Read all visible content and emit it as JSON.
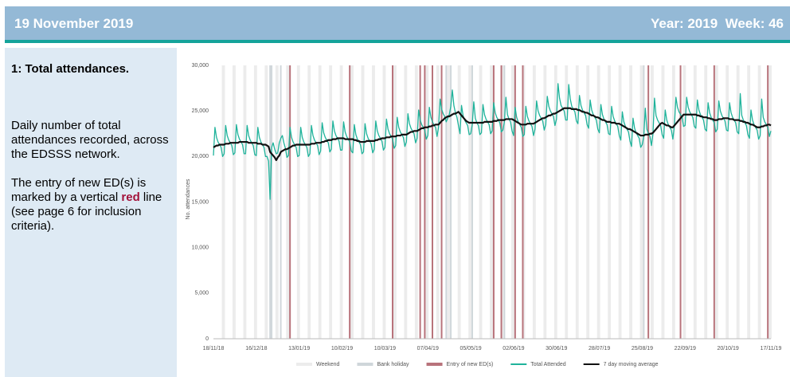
{
  "header": {
    "date": "19 November 2019",
    "year_week": "Year: 2019  Week: 46"
  },
  "sidebar": {
    "heading": "1: Total attendances.",
    "description": "Daily number of total attendances recorded, across the EDSSS network.",
    "note_before": "The entry of new ED(s) is marked by a vertical ",
    "note_highlight": "red",
    "note_after": " line (see page 6 for inclusion criteria)."
  },
  "chart_data": {
    "type": "line",
    "ylabel": "No. attendances",
    "ylim": [
      0,
      30000
    ],
    "yticks": [
      0,
      {
        "value": 5000,
        "label": "5,000"
      },
      {
        "value": 10000,
        "label": "10,000"
      },
      {
        "value": 15000,
        "label": "15,000"
      },
      {
        "value": 20000,
        "label": "20,000"
      },
      {
        "value": 25000,
        "label": "25,000"
      },
      {
        "value": 30000,
        "label": "30,000"
      }
    ],
    "categories": [
      "18/11/18",
      null,
      null,
      null,
      null,
      null,
      null,
      null,
      null,
      null,
      null,
      null,
      null,
      null,
      null,
      null,
      null,
      null,
      null,
      null,
      null,
      null,
      null,
      null,
      null,
      null,
      null,
      null,
      "16/12/18",
      null,
      null,
      null,
      null,
      null,
      null,
      null,
      null,
      null,
      null,
      null,
      null,
      null,
      null,
      null,
      null,
      null,
      null,
      null,
      null,
      null,
      null,
      null,
      null,
      null,
      null,
      null,
      "13/01/19",
      null,
      null,
      null,
      null,
      null,
      null,
      null,
      null,
      null,
      null,
      null,
      null,
      null,
      null,
      null,
      null,
      null,
      null,
      null,
      null,
      null,
      null,
      null,
      null,
      null,
      null,
      null,
      "10/02/19",
      null,
      null,
      null,
      null,
      null,
      null,
      null,
      null,
      null,
      null,
      null,
      null,
      null,
      null,
      null,
      null,
      null,
      null,
      null,
      null,
      null,
      null,
      null,
      null,
      null,
      null,
      null,
      "10/03/19",
      null,
      null,
      null,
      null,
      null,
      null,
      null,
      null,
      null,
      null,
      null,
      null,
      null,
      null,
      null,
      null,
      null,
      null,
      null,
      null,
      null,
      null,
      null,
      null,
      null,
      null,
      null,
      "07/04/19",
      null,
      null,
      null,
      null,
      null,
      null,
      null,
      null,
      null,
      null,
      null,
      null,
      null,
      null,
      null,
      null,
      null,
      null,
      null,
      null,
      null,
      null,
      null,
      null,
      null,
      null,
      null,
      "05/05/19",
      null,
      null,
      null,
      null,
      null,
      null,
      null,
      null,
      null,
      null,
      null,
      null,
      null,
      null,
      null,
      null,
      null,
      null,
      null,
      null,
      null,
      null,
      null,
      null,
      null,
      null,
      null,
      "02/06/19",
      null,
      null,
      null,
      null,
      null,
      null,
      null,
      null,
      null,
      null,
      null,
      null,
      null,
      null,
      null,
      null,
      null,
      null,
      null,
      null,
      null,
      null,
      null,
      null,
      null,
      null,
      null,
      "30/06/19",
      null,
      null,
      null,
      null,
      null,
      null,
      null,
      null,
      null,
      null,
      null,
      null,
      null,
      null,
      null,
      null,
      null,
      null,
      null,
      null,
      null,
      null,
      null,
      null,
      null,
      null,
      null,
      "28/07/19",
      null,
      null,
      null,
      null,
      null,
      null,
      null,
      null,
      null,
      null,
      null,
      null,
      null,
      null,
      null,
      null,
      null,
      null,
      null,
      null,
      null,
      null,
      null,
      null,
      null,
      null,
      null,
      "25/08/19",
      null,
      null,
      null,
      null,
      null,
      null,
      null,
      null,
      null,
      null,
      null,
      null,
      null,
      null,
      null,
      null,
      null,
      null,
      null,
      null,
      null,
      null,
      null,
      null,
      null,
      null,
      null,
      "22/09/19",
      null,
      null,
      null,
      null,
      null,
      null,
      null,
      null,
      null,
      null,
      null,
      null,
      null,
      null,
      null,
      null,
      null,
      null,
      null,
      null,
      null,
      null,
      null,
      null,
      null,
      null,
      null,
      "20/10/19",
      null,
      null,
      null,
      null,
      null,
      null,
      null,
      null,
      null,
      null,
      null,
      null,
      null,
      null,
      null,
      null,
      null,
      null,
      null,
      null,
      null,
      null,
      null,
      null,
      null,
      null,
      null,
      "17/11/19"
    ],
    "weekends": {
      "name": "Weekend",
      "color": "#ececec",
      "days": [
        6,
        13,
        20,
        27,
        34,
        41,
        48,
        55,
        62,
        69,
        76,
        83,
        90,
        97,
        104,
        111,
        118,
        125,
        132,
        139,
        146,
        153,
        160,
        167,
        174,
        181,
        188,
        195,
        202,
        209,
        216,
        223,
        230,
        237,
        244,
        251,
        258,
        265,
        272,
        279,
        286,
        293,
        300,
        307,
        314,
        321,
        328,
        335,
        342,
        349,
        356,
        363
      ]
    },
    "bank_holidays": {
      "name": "Bank holiday",
      "color": "#cfd6da",
      "days": [
        37,
        38,
        44,
        152,
        155,
        169,
        190,
        281
      ]
    },
    "ed_entries": {
      "name": "Entry of new ED(s)",
      "color": "#b8737b",
      "days": [
        50,
        89,
        117,
        135,
        138,
        143,
        149,
        183,
        188,
        197,
        202,
        284,
        305,
        327,
        362
      ]
    },
    "series": [
      {
        "name": "Total Attended",
        "color": "#1fb39b",
        "values": [
          20100,
          23200,
          22100,
          21600,
          21300,
          21000,
          20000,
          20300,
          23400,
          22300,
          21800,
          21500,
          21200,
          20200,
          20400,
          23500,
          22400,
          21900,
          21600,
          21300,
          20300,
          20300,
          23400,
          22300,
          21800,
          21500,
          21200,
          20200,
          20100,
          23200,
          22100,
          21600,
          21300,
          21000,
          20000,
          20000,
          19500,
          15300,
          21000,
          21500,
          20800,
          20300,
          20400,
          21500,
          22000,
          22300,
          21500,
          20900,
          19900,
          20100,
          23200,
          22100,
          21600,
          21300,
          21000,
          20000,
          20100,
          23200,
          22100,
          21600,
          21300,
          21000,
          20000,
          20300,
          23400,
          22300,
          21800,
          21500,
          21200,
          20200,
          20600,
          23700,
          22600,
          22100,
          21800,
          21500,
          20500,
          20800,
          23900,
          22800,
          22300,
          22000,
          21700,
          20700,
          20700,
          23800,
          22700,
          22200,
          21900,
          21600,
          20600,
          20400,
          23500,
          22400,
          21900,
          21600,
          21300,
          20300,
          20500,
          23600,
          22500,
          22000,
          21700,
          21400,
          20400,
          20800,
          23900,
          22800,
          22300,
          22000,
          21700,
          20700,
          21000,
          24100,
          23000,
          22500,
          22200,
          21900,
          20900,
          21200,
          24300,
          23200,
          22700,
          22400,
          22100,
          21100,
          21600,
          24700,
          23600,
          23100,
          22800,
          22500,
          21500,
          22000,
          25100,
          24000,
          23500,
          23200,
          22900,
          21900,
          22300,
          25400,
          24300,
          23800,
          23500,
          23200,
          22200,
          23200,
          26300,
          25200,
          24700,
          24400,
          23800,
          24200,
          24600,
          25500,
          27300,
          25600,
          24800,
          24300,
          23400,
          22500,
          25600,
          24500,
          24000,
          23700,
          23400,
          22400,
          22500,
          23500,
          26000,
          24200,
          23700,
          23400,
          22400,
          22600,
          25700,
          24600,
          24100,
          23800,
          23500,
          22500,
          22800,
          25900,
          24800,
          24300,
          24000,
          23700,
          22700,
          22900,
          23800,
          26500,
          24600,
          24100,
          23800,
          22800,
          22300,
          25400,
          24300,
          23800,
          23500,
          23200,
          22200,
          22400,
          25500,
          24400,
          23900,
          23600,
          23300,
          22300,
          23000,
          26100,
          25000,
          24500,
          24200,
          23900,
          22900,
          23500,
          26600,
          25500,
          25000,
          24700,
          24400,
          23400,
          24100,
          28000,
          26400,
          25600,
          25300,
          25000,
          24000,
          24000,
          27900,
          26300,
          25500,
          25200,
          24900,
          23900,
          23600,
          26700,
          25600,
          25100,
          24800,
          24500,
          23500,
          23100,
          26200,
          25100,
          24600,
          24300,
          24000,
          23000,
          22600,
          25700,
          24600,
          24100,
          23800,
          23500,
          22500,
          22400,
          25500,
          24400,
          23900,
          23600,
          23300,
          22300,
          21800,
          24900,
          23800,
          23300,
          23000,
          22700,
          21700,
          21100,
          24200,
          23100,
          22600,
          22300,
          22000,
          21000,
          21300,
          22200,
          25300,
          23000,
          22500,
          22200,
          21200,
          22500,
          26400,
          24500,
          24000,
          23700,
          23400,
          22400,
          22000,
          25100,
          24000,
          23500,
          23200,
          22900,
          21900,
          23400,
          26500,
          25400,
          24900,
          24600,
          24300,
          23300,
          23400,
          26500,
          25400,
          24900,
          24600,
          24300,
          23300,
          23100,
          26200,
          25100,
          24600,
          24300,
          24000,
          23000,
          22800,
          25900,
          24800,
          24300,
          24000,
          23700,
          22700,
          23000,
          26100,
          25000,
          24500,
          24200,
          23900,
          22900,
          22800,
          25900,
          24800,
          24300,
          24000,
          23700,
          22700,
          22500,
          26900,
          24500,
          24000,
          23700,
          23400,
          22400,
          22000,
          25100,
          24000,
          23500,
          23200,
          22900,
          21900,
          22300,
          26300,
          24300,
          23800,
          23500,
          23200,
          22200,
          22800
        ]
      },
      {
        "name": "7 day moving average",
        "color": "#111111",
        "values": [
          21000,
          21100,
          21200,
          21200,
          21300,
          21300,
          21300,
          21300,
          21400,
          21400,
          21400,
          21500,
          21500,
          21500,
          21500,
          21500,
          21500,
          21600,
          21600,
          21600,
          21600,
          21600,
          21600,
          21500,
          21500,
          21500,
          21500,
          21500,
          21500,
          21400,
          21400,
          21400,
          21300,
          21300,
          21300,
          21200,
          21100,
          20500,
          20300,
          20100,
          19900,
          19600,
          19900,
          20100,
          20500,
          20600,
          20700,
          20800,
          20800,
          20900,
          21000,
          21100,
          21200,
          21200,
          21300,
          21300,
          21300,
          21300,
          21300,
          21300,
          21300,
          21300,
          21300,
          21300,
          21400,
          21400,
          21400,
          21500,
          21500,
          21500,
          21500,
          21600,
          21600,
          21700,
          21700,
          21800,
          21800,
          21800,
          21900,
          21900,
          21900,
          22000,
          22000,
          22000,
          22000,
          22000,
          21900,
          21900,
          21900,
          21900,
          21900,
          21900,
          21800,
          21800,
          21700,
          21700,
          21600,
          21600,
          21600,
          21600,
          21700,
          21700,
          21700,
          21700,
          21700,
          21700,
          21800,
          21800,
          21900,
          21900,
          22000,
          22000,
          22000,
          22100,
          22100,
          22100,
          22200,
          22200,
          22200,
          22200,
          22300,
          22300,
          22300,
          22400,
          22400,
          22400,
          22400,
          22500,
          22600,
          22700,
          22700,
          22800,
          22800,
          22800,
          22900,
          23000,
          23100,
          23100,
          23200,
          23200,
          23200,
          23300,
          23300,
          23400,
          23400,
          23500,
          23500,
          23500,
          23700,
          23900,
          24000,
          24200,
          24300,
          24400,
          24400,
          24500,
          24600,
          24700,
          24700,
          24800,
          24900,
          24700,
          24500,
          24300,
          24100,
          23900,
          23800,
          23700,
          23700,
          23700,
          23700,
          23700,
          23700,
          23700,
          23700,
          23700,
          23700,
          23800,
          23800,
          23800,
          23800,
          23800,
          23800,
          23900,
          23900,
          23900,
          24000,
          24000,
          24000,
          24000,
          24000,
          24100,
          24100,
          24100,
          24100,
          24100,
          24000,
          23900,
          23800,
          23700,
          23600,
          23500,
          23500,
          23500,
          23500,
          23600,
          23600,
          23600,
          23600,
          23600,
          23700,
          23800,
          23900,
          24000,
          24100,
          24200,
          24200,
          24300,
          24400,
          24500,
          24500,
          24600,
          24700,
          24700,
          24800,
          24900,
          25000,
          25100,
          25200,
          25300,
          25300,
          25300,
          25300,
          25300,
          25200,
          25200,
          25200,
          25200,
          25100,
          25100,
          25000,
          24900,
          24900,
          24800,
          24800,
          24700,
          24600,
          24500,
          24500,
          24400,
          24300,
          24300,
          24200,
          24100,
          24000,
          24000,
          23900,
          23800,
          23800,
          23800,
          23700,
          23700,
          23700,
          23600,
          23600,
          23600,
          23500,
          23400,
          23300,
          23200,
          23100,
          23000,
          23000,
          22900,
          22800,
          22700,
          22600,
          22500,
          22400,
          22300,
          22300,
          22300,
          22400,
          22400,
          22400,
          22500,
          22500,
          22600,
          22800,
          23000,
          23200,
          23400,
          23600,
          23700,
          23600,
          23500,
          23400,
          23400,
          23300,
          23200,
          23200,
          23400,
          23600,
          23800,
          24000,
          24200,
          24400,
          24600,
          24600,
          24600,
          24600,
          24600,
          24600,
          24600,
          24600,
          24600,
          24500,
          24500,
          24400,
          24400,
          24300,
          24300,
          24300,
          24200,
          24200,
          24100,
          24100,
          24000,
          24000,
          24000,
          24100,
          24100,
          24100,
          24200,
          24200,
          24200,
          24200,
          24100,
          24100,
          24100,
          24000,
          24000,
          24000,
          24000,
          23900,
          23900,
          23800,
          23800,
          23700,
          23700,
          23600,
          23500,
          23500,
          23400,
          23300,
          23200,
          23200,
          23200,
          23300,
          23300,
          23400,
          23400,
          23500,
          23500,
          23400
        ]
      }
    ]
  }
}
